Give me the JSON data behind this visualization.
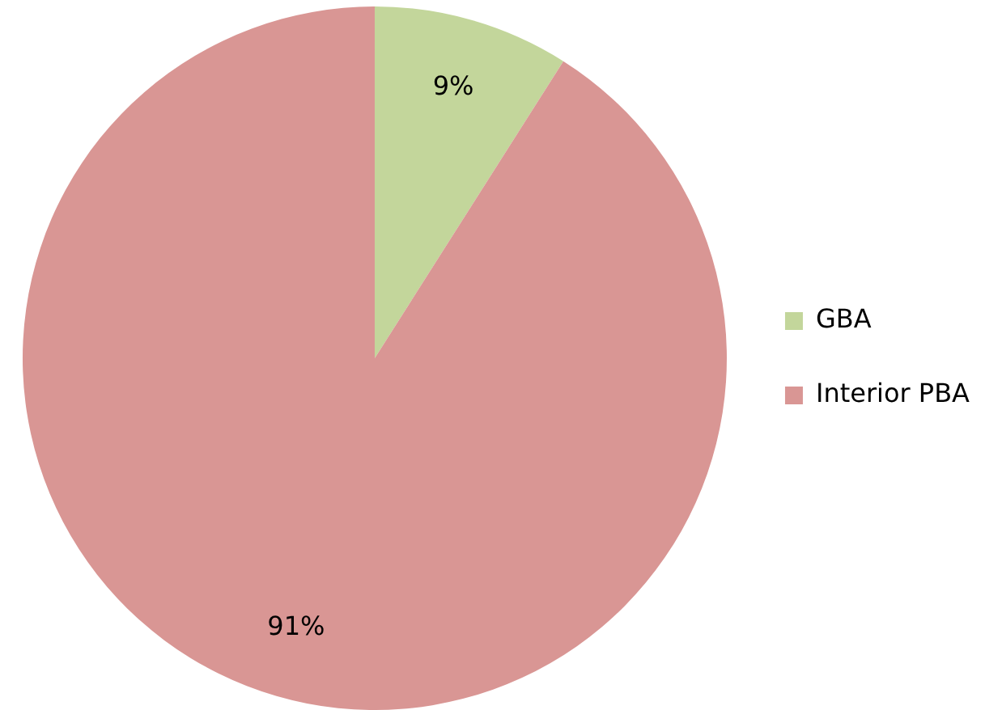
{
  "chart_data": {
    "type": "pie",
    "categories": [
      "GBA",
      "Interior PBA"
    ],
    "values": [
      9,
      91
    ],
    "colors": [
      "#c3d69b",
      "#d99694"
    ],
    "value_labels": [
      "9%",
      "91%"
    ],
    "legend": "right"
  }
}
